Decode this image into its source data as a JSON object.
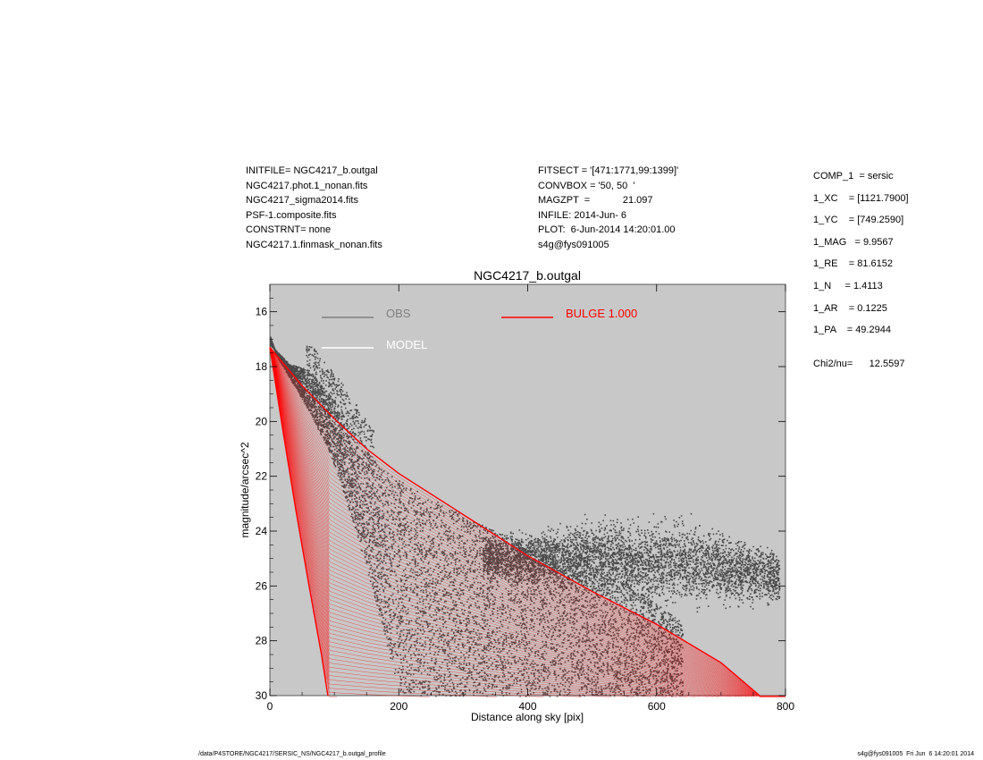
{
  "header": {
    "left": [
      "INITFILE= NGC4217_b.outgal",
      "NGC4217.phot.1_nonan.fits",
      "NGC4217_sigma2014.fits",
      "PSF-1.composite.fits",
      "CONSTRNT= none",
      "NGC4217.1.finmask_nonan.fits"
    ],
    "middle": [
      "FITSECT = '[471:1771,99:1399]'",
      "CONVBOX = '50, 50  '",
      "MAGZPT  =            21.097",
      "INFILE: 2014-Jun- 6",
      "PLOT:  6-Jun-2014 14:20:01.00",
      "s4g@fys091005"
    ]
  },
  "params": {
    "rows": [
      "COMP_1  = sersic",
      "1_XC    = [1121.7900]",
      "1_YC    = [749.2590]",
      "1_MAG   = 9.9567",
      "1_RE    = 81.6152",
      "1_N     = 1.4113",
      "1_AR    = 0.1225",
      "1_PA    = 49.2944"
    ],
    "chi": "Chi2/nu=      12.5597"
  },
  "footer": {
    "left": "/data/P4STORE/NGC4217/SERSIC_NS/NGC4217_b.outgal_profile",
    "right": "s4g@fys091005  Fri Jun  6 14:20:01 2014"
  },
  "colors": {
    "plot_bg": "#c8c8c8",
    "obs": "#4a4a4a",
    "obs_legend": "#808080",
    "model": "#ffffff",
    "bulge": "#ff0000"
  },
  "chart_data": {
    "type": "scatter",
    "title": "NGC4217_b.outgal",
    "xlabel": "Distance along sky [pix]",
    "ylabel": "magnitude/arcsec^2",
    "xlim": [
      0,
      800
    ],
    "ylim": [
      30,
      15
    ],
    "y_inverted": true,
    "x_ticks": [
      0,
      200,
      400,
      600,
      800
    ],
    "y_ticks": [
      16,
      18,
      20,
      22,
      24,
      26,
      28,
      30
    ],
    "grid": false,
    "legend": [
      {
        "label": "OBS",
        "color": "#808080",
        "placement": "top-left"
      },
      {
        "label": "MODEL",
        "color": "#ffffff",
        "placement": "top-left"
      },
      {
        "label": "BULGE  1.000",
        "color": "#ff0000",
        "placement": "top-center"
      }
    ],
    "series": [
      {
        "name": "OBS",
        "kind": "scatter",
        "profile": {
          "inner_edge": [
            [
              0,
              16.9
            ],
            [
              10,
              17.6
            ],
            [
              30,
              18.4
            ],
            [
              60,
              19.6
            ],
            [
              90,
              21.0
            ],
            [
              110,
              22.3
            ],
            [
              130,
              23.8
            ],
            [
              155,
              25.8
            ],
            [
              175,
              27.6
            ],
            [
              195,
              29.4
            ],
            [
              205,
              30
            ]
          ],
          "outer_edge": [
            [
              0,
              17.2
            ],
            [
              30,
              17.9
            ],
            [
              60,
              18.1
            ],
            [
              100,
              19.2
            ],
            [
              140,
              20.6
            ],
            [
              170,
              21.7
            ],
            [
              250,
              22.8
            ],
            [
              350,
              24.0
            ],
            [
              450,
              24.8
            ],
            [
              550,
              25.8
            ],
            [
              650,
              27.5
            ],
            [
              750,
              29.7
            ]
          ],
          "halo_band": [
            [
              330,
              23.9,
              26.0
            ],
            [
              500,
              23.2,
              26.8
            ],
            [
              650,
              23.2,
              27.2
            ],
            [
              790,
              24.4,
              26.9
            ]
          ]
        }
      },
      {
        "name": "BULGE  1.000",
        "kind": "line-envelope",
        "upper": [
          [
            0,
            17.3
          ],
          [
            50,
            18.7
          ],
          [
            100,
            19.9
          ],
          [
            150,
            21.0
          ],
          [
            200,
            21.9
          ],
          [
            300,
            23.4
          ],
          [
            400,
            24.9
          ],
          [
            500,
            26.2
          ],
          [
            600,
            27.4
          ],
          [
            700,
            28.8
          ],
          [
            760,
            30.0
          ]
        ],
        "lower": [
          [
            0,
            17.3
          ],
          [
            20,
            20.3
          ],
          [
            40,
            23.2
          ],
          [
            60,
            25.9
          ],
          [
            80,
            28.5
          ],
          [
            90,
            30.0
          ]
        ]
      }
    ]
  }
}
